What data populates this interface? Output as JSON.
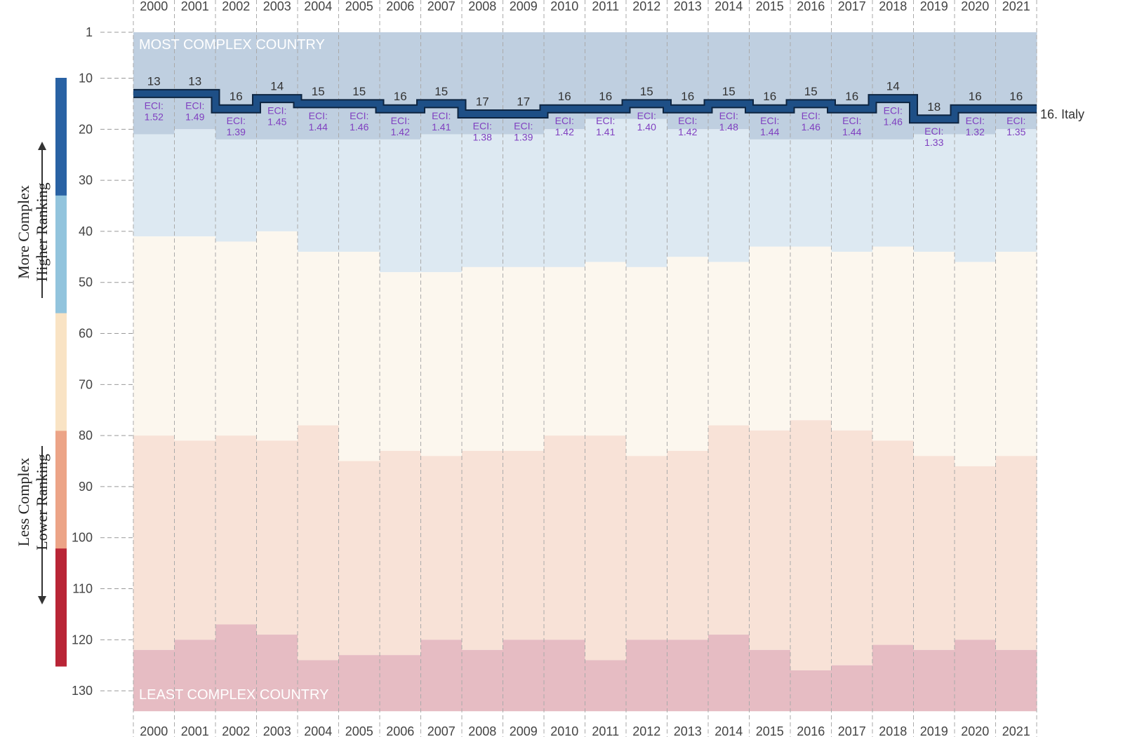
{
  "chart_data": {
    "type": "step",
    "years": [
      "2000",
      "2001",
      "2002",
      "2003",
      "2004",
      "2005",
      "2006",
      "2007",
      "2008",
      "2009",
      "2010",
      "2011",
      "2012",
      "2013",
      "2014",
      "2015",
      "2016",
      "2017",
      "2018",
      "2019",
      "2020",
      "2021"
    ],
    "rank": [
      13,
      13,
      16,
      14,
      15,
      15,
      16,
      15,
      17,
      17,
      16,
      16,
      15,
      16,
      15,
      16,
      15,
      16,
      14,
      18,
      16,
      16
    ],
    "eci_prefix": "ECI:",
    "eci": [
      "1.52",
      "1.49",
      "1.39",
      "1.45",
      "1.44",
      "1.46",
      "1.42",
      "1.41",
      "1.38",
      "1.39",
      "1.42",
      "1.41",
      "1.40",
      "1.42",
      "1.48",
      "1.44",
      "1.46",
      "1.44",
      "1.46",
      "1.33",
      "1.32",
      "1.35"
    ],
    "band_boundaries": {
      "b1": [
        21,
        20,
        22,
        22,
        22,
        22,
        22,
        21,
        21,
        21,
        20,
        18,
        18,
        20,
        20,
        22,
        22,
        22,
        22,
        21,
        21,
        20
      ],
      "b2": [
        41,
        41,
        42,
        40,
        44,
        44,
        48,
        48,
        47,
        47,
        47,
        46,
        47,
        45,
        46,
        43,
        43,
        44,
        43,
        44,
        46,
        44
      ],
      "b3": [
        80,
        81,
        80,
        81,
        78,
        85,
        83,
        84,
        83,
        83,
        80,
        80,
        84,
        83,
        78,
        79,
        77,
        79,
        81,
        84,
        86,
        84
      ],
      "b4": [
        122,
        120,
        117,
        119,
        124,
        123,
        123,
        120,
        122,
        120,
        120,
        124,
        120,
        120,
        119,
        122,
        126,
        125,
        121,
        122,
        120,
        122
      ],
      "bottom": [
        134,
        134,
        134,
        134,
        134,
        134,
        134,
        134,
        134,
        134,
        134,
        134,
        134,
        134,
        134,
        134,
        134,
        134,
        134,
        134,
        134,
        134
      ]
    },
    "band_colors": [
      "#bfcfe0",
      "#dde9f2",
      "#fcf7ee",
      "#f8e2d7",
      "#e6bcc3"
    ],
    "y_ticks": [
      1,
      10,
      20,
      30,
      40,
      50,
      60,
      70,
      80,
      90,
      100,
      110,
      120,
      130
    ],
    "top_label": "MOST COMPLEX COUNTRY",
    "bottom_label": "LEAST COMPLEX COUNTRY",
    "end_label": "16. Italy",
    "legend_colors": [
      "#2962a4",
      "#92c4dd",
      "#f9e3c4",
      "#eca487",
      "#b92536"
    ],
    "arrow_up_label": [
      "More Complex",
      "Higher Ranking"
    ],
    "arrow_down_label": [
      "Less Complex",
      "Lower Ranking"
    ],
    "line_color": "#1e4f86",
    "eci_color": "#8040c0"
  }
}
